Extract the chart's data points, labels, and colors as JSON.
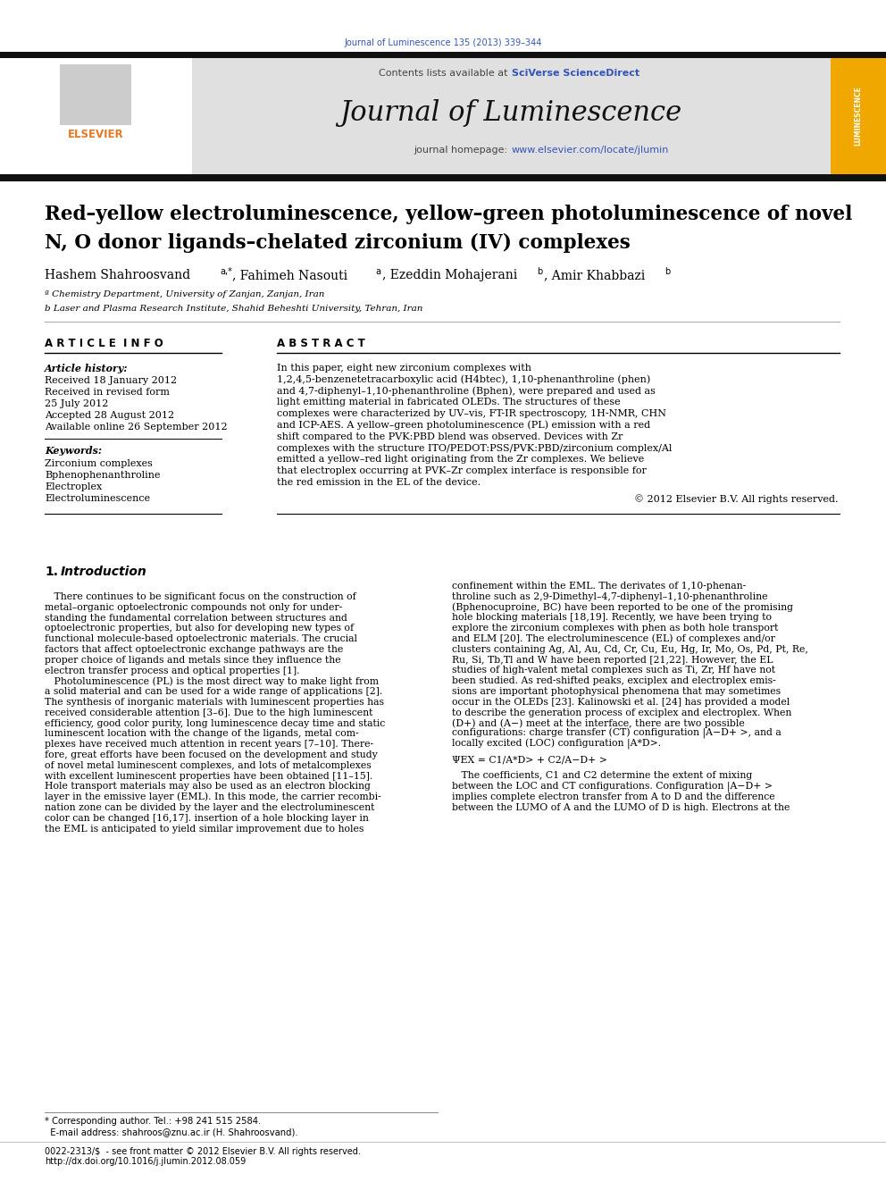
{
  "journal_citation": "Journal of Luminescence 135 (2013) 339–344",
  "journal_name": "Journal of Luminescence",
  "article_title_line1": "Red–yellow electroluminescence, yellow–green photoluminescence of novel",
  "article_title_line2": "N, O donor ligands–chelated zirconium (IV) complexes",
  "affil_a": "ª Chemistry Department, University of Zanjan, Zanjan, Iran",
  "affil_b": "b Laser and Plasma Research Institute, Shahid Beheshti University, Tehran, Iran",
  "article_info_header": "A R T I C L E  I N F O",
  "abstract_header": "A B S T R A C T",
  "article_history_label": "Article history:",
  "history_lines": [
    "Received 18 January 2012",
    "Received in revised form",
    "25 July 2012",
    "Accepted 28 August 2012",
    "Available online 26 September 2012"
  ],
  "keywords_label": "Keywords:",
  "keywords_lines": [
    "Zirconium complexes",
    "Bphenophenanthroline",
    "Electroplex",
    "Electroluminescence"
  ],
  "abstract_text": "In this paper, eight new zirconium complexes with 1,2,4,5-benzenetetracarboxylic acid (H4btec), 1,10-phenanthroline (phen) and 4,7-diphenyl–1,10-phenanthroline (Bphen), were prepared and used as light emitting material in fabricated OLEDs. The structures of these complexes were characterized by UV–vis, FT-IR spectroscopy, 1H-NMR, CHN and ICP-AES. A yellow–green photoluminescence (PL) emission with a red shift compared to the PVK:PBD blend was observed. Devices with Zr complexes with the structure ITO/PEDOT:PSS/PVK:PBD/zirconium complex/Al emitted a yellow–red light originating from the Zr complexes. We believe that electroplex occurring at PVK–Zr complex interface is responsible for the red emission in the EL of the device.",
  "copyright": "© 2012 Elsevier B.V. All rights reserved.",
  "intro_header": "1.  Introduction",
  "intro_col1_lines": [
    "   There continues to be significant focus on the construction of",
    "metal–organic optoelectronic compounds not only for under-",
    "standing the fundamental correlation between structures and",
    "optoelectronic properties, but also for developing new types of",
    "functional molecule-based optoelectronic materials. The crucial",
    "factors that affect optoelectronic exchange pathways are the",
    "proper choice of ligands and metals since they influence the",
    "electron transfer process and optical properties [1].",
    "   Photoluminescence (PL) is the most direct way to make light from",
    "a solid material and can be used for a wide range of applications [2].",
    "The synthesis of inorganic materials with luminescent properties has",
    "received considerable attention [3–6]. Due to the high luminescent",
    "efficiency, good color purity, long luminescence decay time and static",
    "luminescent location with the change of the ligands, metal com-",
    "plexes have received much attention in recent years [7–10]. There-",
    "fore, great efforts have been focused on the development and study",
    "of novel metal luminescent complexes, and lots of metalcomplexes",
    "with excellent luminescent properties have been obtained [11–15].",
    "Hole transport materials may also be used as an electron blocking",
    "layer in the emissive layer (EML). In this mode, the carrier recombi-",
    "nation zone can be divided by the layer and the electroluminescent",
    "color can be changed [16,17]. insertion of a hole blocking layer in",
    "the EML is anticipated to yield similar improvement due to holes"
  ],
  "intro_col2_lines": [
    "confinement within the EML. The derivates of 1,10-phenan-",
    "throline such as 2,9-Dimethyl–4,7-diphenyl–1,10-phenanthroline",
    "(Bphenocuproine, BC) have been reported to be one of the promising",
    "hole blocking materials [18,19]. Recently, we have been trying to",
    "explore the zirconium complexes with phen as both hole transport",
    "and ELM [20]. The electroluminescence (EL) of complexes and/or",
    "clusters containing Ag, Al, Au, Cd, Cr, Cu, Eu, Hg, Ir, Mo, Os, Pd, Pt, Re,",
    "Ru, Si, Tb,Tl and W have been reported [21,22]. However, the EL",
    "studies of high-valent metal complexes such as Ti, Zr, Hf have not",
    "been studied. As red-shifted peaks, exciplex and electroplex emis-",
    "sions are important photophysical phenomena that may sometimes",
    "occur in the OLEDs [23]. Kalinowski et al. [24] has provided a model",
    "to describe the generation process of exciplex and electroplex. When",
    "(D+) and (A−) meet at the interface, there are two possible",
    "configurations: charge transfer (CT) configuration |A−D+ >, and a",
    "locally excited (LOC) configuration |A*D>.",
    "",
    "ΨEX = C1/A*D> + C2/A−D+ >",
    "",
    "   The coefficients, C1 and C2 determine the extent of mixing",
    "between the LOC and CT configurations. Configuration |A−D+ >",
    "implies complete electron transfer from A to D and the difference",
    "between the LUMO of A and the LUMO of D is high. Electrons at the"
  ],
  "footer_line1": "* Corresponding author. Tel.: +98 241 515 2584.",
  "footer_line2": "  E-mail address: shahroos@znu.ac.ir (H. Shahroosvand).",
  "footer_line3": "0022-2313/$  - see front matter © 2012 Elsevier B.V. All rights reserved.",
  "footer_line4": "http://dx.doi.org/10.1016/j.jlumin.2012.08.059",
  "bg_color": "#ffffff",
  "header_bg": "#e0e0e0",
  "orange_color": "#e87722",
  "blue_link_color": "#3355bb",
  "journal_cover_bg": "#f0a800",
  "text_color": "#000000"
}
